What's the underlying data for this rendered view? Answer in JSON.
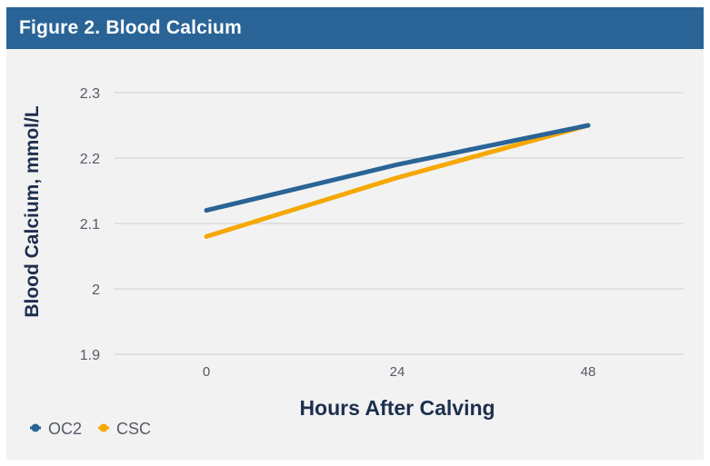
{
  "figure": {
    "title": "Figure 2. Blood Calcium"
  },
  "colors": {
    "header": "#2a6496",
    "oc2": "#2a6496",
    "csc": "#f5a800",
    "grid": "#cfcfcf"
  },
  "chart_data": {
    "type": "line",
    "title": "Figure 2. Blood Calcium",
    "xlabel": "Hours After Calving",
    "ylabel": "Blood Calcium, mmol/L",
    "categories": [
      "0",
      "24",
      "48"
    ],
    "yticks": [
      "2.3",
      "2.2",
      "2.1",
      "2",
      "1.9"
    ],
    "ylim": [
      1.9,
      2.3
    ],
    "grid": true,
    "legend_position": "bottom-left",
    "series": [
      {
        "name": "OC2",
        "color": "#2a6496",
        "values": [
          2.12,
          2.19,
          2.25
        ]
      },
      {
        "name": "CSC",
        "color": "#f5a800",
        "values": [
          2.08,
          2.17,
          2.25
        ]
      }
    ]
  }
}
